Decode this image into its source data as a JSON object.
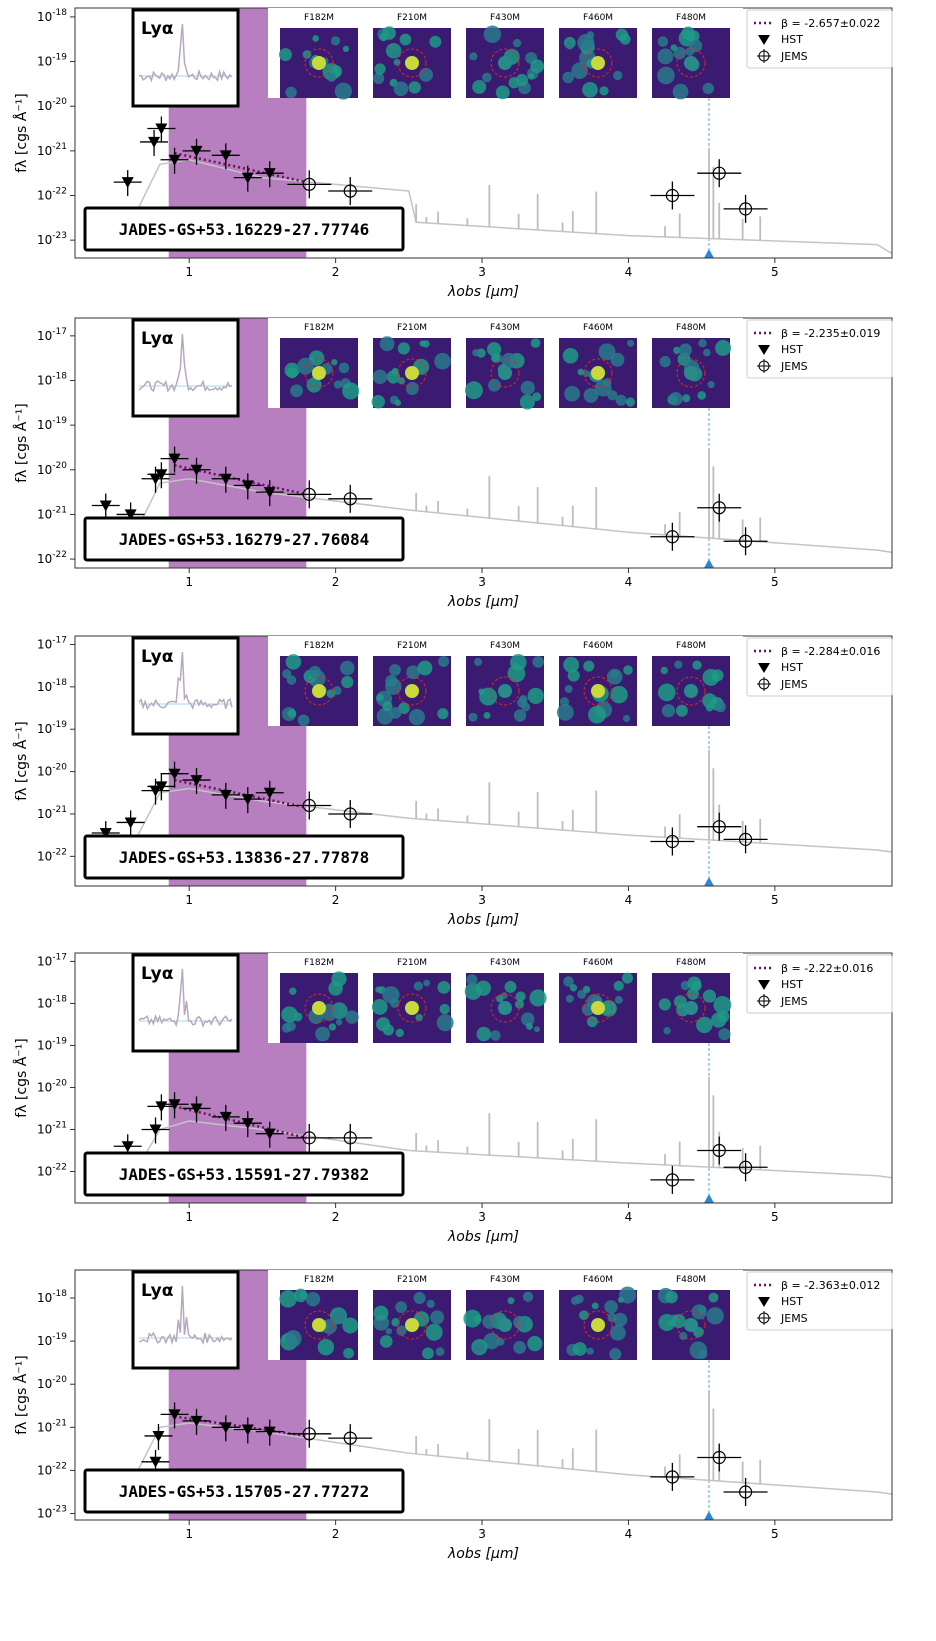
{
  "chart_data": [
    {
      "type": "scatter",
      "source_id": "JADES-GS+53.16229-27.77746",
      "xlabel": "λobs [μm]",
      "ylabel": "fλ [cgs Å⁻¹]",
      "xlim": [
        0.22,
        5.8
      ],
      "y_log_range": [
        -23.4,
        -17.8
      ],
      "y_ticks": [
        -23,
        -22,
        -21,
        -20,
        -19,
        -18
      ],
      "x_ticks": [
        1,
        2,
        3,
        4,
        5
      ],
      "legend": {
        "position": "top-right",
        "beta_text": "β = -2.657±0.022",
        "hst": "HST",
        "jems": "JEMS"
      },
      "lya_label": "Lyα",
      "filters": [
        "F182M",
        "F210M",
        "F430M",
        "F460M",
        "F480M"
      ],
      "shaded_band_um": [
        0.86,
        1.8
      ],
      "lya_line_um": 4.55,
      "hst": [
        {
          "x": 0.58,
          "y": -21.7,
          "limit": true
        },
        {
          "x": 0.76,
          "y": -20.8,
          "limit": true
        },
        {
          "x": 0.81,
          "y": -20.5,
          "limit": true
        },
        {
          "x": 0.9,
          "y": -21.2,
          "limit": true
        },
        {
          "x": 1.05,
          "y": -21.0,
          "limit": true
        },
        {
          "x": 1.25,
          "y": -21.1,
          "limit": true
        },
        {
          "x": 1.4,
          "y": -21.6,
          "limit": true
        },
        {
          "x": 1.55,
          "y": -21.5,
          "limit": true
        }
      ],
      "jems": [
        {
          "x": 1.82,
          "y": -21.75
        },
        {
          "x": 2.1,
          "y": -21.9
        },
        {
          "x": 4.3,
          "y": -22.0
        },
        {
          "x": 4.62,
          "y": -21.5
        },
        {
          "x": 4.8,
          "y": -22.3
        }
      ],
      "beta_fit": {
        "x": [
          0.9,
          1.8
        ],
        "y": [
          -21.05,
          -21.7
        ]
      },
      "continuum": [
        [
          0.65,
          -22.3
        ],
        [
          0.8,
          -21.3
        ],
        [
          1.0,
          -21.2
        ],
        [
          1.5,
          -21.6
        ],
        [
          2.5,
          -21.9
        ],
        [
          2.55,
          -22.6
        ],
        [
          4.0,
          -22.9
        ],
        [
          5.7,
          -23.1
        ],
        [
          5.8,
          -23.3
        ]
      ]
    },
    {
      "type": "scatter",
      "source_id": "JADES-GS+53.16279-27.76084",
      "xlabel": "λobs [μm]",
      "ylabel": "fλ [cgs Å⁻¹]",
      "xlim": [
        0.22,
        5.8
      ],
      "y_log_range": [
        -22.2,
        -16.6
      ],
      "y_ticks": [
        -22,
        -21,
        -20,
        -19,
        -18,
        -17
      ],
      "x_ticks": [
        1,
        2,
        3,
        4,
        5
      ],
      "legend": {
        "position": "top-right",
        "beta_text": "β = -2.235±0.019",
        "hst": "HST",
        "jems": "JEMS"
      },
      "lya_label": "Lyα",
      "filters": [
        "F182M",
        "F210M",
        "F430M",
        "F460M",
        "F480M"
      ],
      "shaded_band_um": [
        0.86,
        1.8
      ],
      "lya_line_um": 4.55,
      "hst": [
        {
          "x": 0.43,
          "y": -20.8,
          "limit": true
        },
        {
          "x": 0.6,
          "y": -21.0,
          "limit": true
        },
        {
          "x": 0.77,
          "y": -20.2,
          "limit": true
        },
        {
          "x": 0.81,
          "y": -20.1,
          "limit": true
        },
        {
          "x": 0.9,
          "y": -19.75,
          "limit": true
        },
        {
          "x": 1.05,
          "y": -20.0,
          "limit": true
        },
        {
          "x": 1.25,
          "y": -20.2,
          "limit": true
        },
        {
          "x": 1.4,
          "y": -20.35,
          "limit": true
        },
        {
          "x": 1.55,
          "y": -20.5,
          "limit": true
        }
      ],
      "jems": [
        {
          "x": 1.82,
          "y": -20.55
        },
        {
          "x": 2.1,
          "y": -20.65
        },
        {
          "x": 4.3,
          "y": -21.5
        },
        {
          "x": 4.62,
          "y": -20.85
        },
        {
          "x": 4.8,
          "y": -21.6
        }
      ],
      "beta_fit": {
        "x": [
          0.9,
          1.8
        ],
        "y": [
          -19.9,
          -20.55
        ]
      },
      "continuum": [
        [
          0.65,
          -21.3
        ],
        [
          0.8,
          -20.3
        ],
        [
          1.0,
          -20.2
        ],
        [
          1.5,
          -20.5
        ],
        [
          2.5,
          -20.9
        ],
        [
          4.0,
          -21.4
        ],
        [
          5.7,
          -21.8
        ],
        [
          5.8,
          -21.85
        ]
      ]
    },
    {
      "type": "scatter",
      "source_id": "JADES-GS+53.13836-27.77878",
      "xlabel": "λobs [μm]",
      "ylabel": "fλ [cgs Å⁻¹]",
      "xlim": [
        0.22,
        5.8
      ],
      "y_log_range": [
        -22.7,
        -16.8
      ],
      "y_ticks": [
        -22,
        -21,
        -20,
        -19,
        -18,
        -17
      ],
      "x_ticks": [
        1,
        2,
        3,
        4,
        5
      ],
      "legend": {
        "position": "top-right",
        "beta_text": "β = -2.284±0.016",
        "hst": "HST",
        "jems": "JEMS"
      },
      "lya_label": "Lyα",
      "filters": [
        "F182M",
        "F210M",
        "F430M",
        "F460M",
        "F480M"
      ],
      "shaded_band_um": [
        0.86,
        1.8
      ],
      "lya_line_um": 4.55,
      "hst": [
        {
          "x": 0.43,
          "y": -21.45,
          "limit": true
        },
        {
          "x": 0.6,
          "y": -21.2,
          "limit": true
        },
        {
          "x": 0.77,
          "y": -20.45,
          "limit": true
        },
        {
          "x": 0.81,
          "y": -20.35,
          "limit": true
        },
        {
          "x": 0.9,
          "y": -20.05,
          "limit": true
        },
        {
          "x": 1.05,
          "y": -20.2,
          "limit": true
        },
        {
          "x": 1.25,
          "y": -20.55,
          "limit": true
        },
        {
          "x": 1.4,
          "y": -20.65,
          "limit": true
        },
        {
          "x": 1.55,
          "y": -20.5,
          "limit": true
        }
      ],
      "jems": [
        {
          "x": 1.82,
          "y": -20.8
        },
        {
          "x": 2.1,
          "y": -21.0
        },
        {
          "x": 4.3,
          "y": -21.65
        },
        {
          "x": 4.62,
          "y": -21.3
        },
        {
          "x": 4.8,
          "y": -21.6
        }
      ],
      "beta_fit": {
        "x": [
          0.9,
          1.8
        ],
        "y": [
          -20.2,
          -20.85
        ]
      },
      "continuum": [
        [
          0.65,
          -21.5
        ],
        [
          0.8,
          -20.5
        ],
        [
          1.0,
          -20.4
        ],
        [
          1.5,
          -20.7
        ],
        [
          2.5,
          -21.1
        ],
        [
          4.0,
          -21.5
        ],
        [
          5.7,
          -21.85
        ],
        [
          5.8,
          -21.9
        ]
      ]
    },
    {
      "type": "scatter",
      "source_id": "JADES-GS+53.15591-27.79382",
      "xlabel": "λobs [μm]",
      "ylabel": "fλ [cgs Å⁻¹]",
      "xlim": [
        0.22,
        5.8
      ],
      "y_log_range": [
        -22.75,
        -16.8
      ],
      "y_ticks": [
        -22,
        -21,
        -20,
        -19,
        -18,
        -17
      ],
      "x_ticks": [
        1,
        2,
        3,
        4,
        5
      ],
      "legend": {
        "position": "top-right",
        "beta_text": "β = -2.22±0.016",
        "hst": "HST",
        "jems": "JEMS"
      },
      "lya_label": "Lyα",
      "filters": [
        "F182M",
        "F210M",
        "F430M",
        "F460M",
        "F480M"
      ],
      "shaded_band_um": [
        0.86,
        1.8
      ],
      "lya_line_um": 4.55,
      "hst": [
        {
          "x": 0.58,
          "y": -21.4,
          "limit": true
        },
        {
          "x": 0.77,
          "y": -21.0,
          "limit": true
        },
        {
          "x": 0.81,
          "y": -20.45,
          "limit": true
        },
        {
          "x": 0.9,
          "y": -20.4,
          "limit": true
        },
        {
          "x": 1.05,
          "y": -20.5,
          "limit": true
        },
        {
          "x": 1.25,
          "y": -20.7,
          "limit": true
        },
        {
          "x": 1.4,
          "y": -20.85,
          "limit": true
        },
        {
          "x": 1.55,
          "y": -21.1,
          "limit": true
        }
      ],
      "jems": [
        {
          "x": 1.82,
          "y": -21.2
        },
        {
          "x": 2.1,
          "y": -21.2
        },
        {
          "x": 4.3,
          "y": -22.2
        },
        {
          "x": 4.62,
          "y": -21.5
        },
        {
          "x": 4.8,
          "y": -21.9
        }
      ],
      "beta_fit": {
        "x": [
          0.9,
          1.8
        ],
        "y": [
          -20.45,
          -21.2
        ]
      },
      "continuum": [
        [
          0.65,
          -21.9
        ],
        [
          0.8,
          -21.0
        ],
        [
          1.0,
          -20.8
        ],
        [
          1.5,
          -21.0
        ],
        [
          2.5,
          -21.5
        ],
        [
          4.0,
          -21.8
        ],
        [
          5.7,
          -22.1
        ],
        [
          5.8,
          -22.15
        ]
      ]
    },
    {
      "type": "scatter",
      "source_id": "JADES-GS+53.15705-27.77272",
      "xlabel": "λobs [μm]",
      "ylabel": "fλ [cgs Å⁻¹]",
      "xlim": [
        0.22,
        5.8
      ],
      "y_log_range": [
        -23.15,
        -17.35
      ],
      "y_ticks": [
        -23,
        -22,
        -21,
        -20,
        -19,
        -18
      ],
      "x_ticks": [
        1,
        2,
        3,
        4,
        5
      ],
      "legend": {
        "position": "top-right",
        "beta_text": "β = -2.363±0.012",
        "hst": "HST",
        "jems": "JEMS"
      },
      "lya_label": "Lyα",
      "filters": [
        "F182M",
        "F210M",
        "F430M",
        "F460M",
        "F480M"
      ],
      "shaded_band_um": [
        0.86,
        1.8
      ],
      "lya_line_um": 4.55,
      "hst": [
        {
          "x": 0.77,
          "y": -21.8,
          "limit": true
        },
        {
          "x": 0.79,
          "y": -21.2,
          "limit": true
        },
        {
          "x": 0.9,
          "y": -20.7,
          "limit": true
        },
        {
          "x": 1.05,
          "y": -20.85,
          "limit": true
        },
        {
          "x": 1.25,
          "y": -21.0,
          "limit": true
        },
        {
          "x": 1.4,
          "y": -21.05,
          "limit": true
        },
        {
          "x": 1.55,
          "y": -21.1,
          "limit": true
        }
      ],
      "jems": [
        {
          "x": 1.82,
          "y": -21.15
        },
        {
          "x": 2.1,
          "y": -21.25
        },
        {
          "x": 4.3,
          "y": -22.15
        },
        {
          "x": 4.62,
          "y": -21.7
        },
        {
          "x": 4.8,
          "y": -22.5
        }
      ],
      "beta_fit": {
        "x": [
          0.9,
          1.8
        ],
        "y": [
          -20.75,
          -21.2
        ]
      },
      "continuum": [
        [
          0.65,
          -22.0
        ],
        [
          0.8,
          -21.0
        ],
        [
          1.0,
          -20.9
        ],
        [
          1.5,
          -21.1
        ],
        [
          2.5,
          -21.6
        ],
        [
          4.0,
          -22.1
        ],
        [
          5.7,
          -22.5
        ],
        [
          5.8,
          -22.55
        ]
      ]
    }
  ]
}
